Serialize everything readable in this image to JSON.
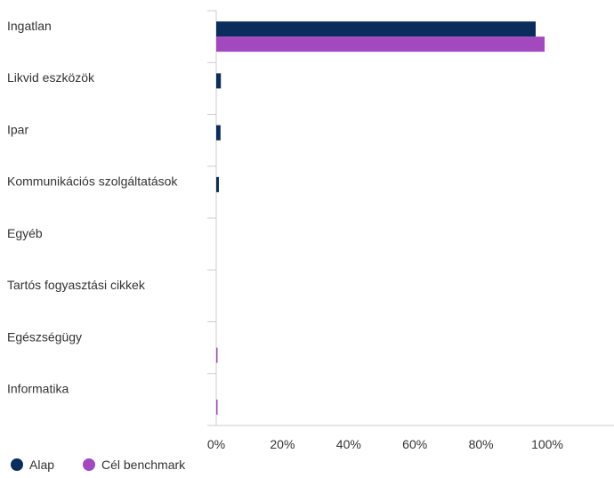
{
  "chart_data": {
    "type": "bar",
    "orientation": "horizontal",
    "categories": [
      "Ingatlan",
      "Likvid eszközök",
      "Ipar",
      "Kommunikációs szolgáltatások",
      "Egyéb",
      "Tartós fogyasztási cikkek",
      "Egészségügy",
      "Informatika"
    ],
    "series": [
      {
        "name": "Alap",
        "color": "#0b2d5b",
        "values": [
          96.5,
          1.4,
          1.3,
          0.8,
          0,
          0,
          0,
          0
        ]
      },
      {
        "name": "Cél benchmark",
        "color": "#a349bf",
        "values": [
          99.2,
          0,
          0,
          0,
          0,
          0,
          0.3,
          0.3
        ]
      }
    ],
    "xlim": [
      0,
      120
    ],
    "xticks": [
      0,
      20,
      40,
      60,
      80,
      100
    ],
    "xtick_labels": [
      "0%",
      "20%",
      "40%",
      "60%",
      "80%",
      "100%"
    ],
    "grid": false,
    "legend": "bottom-left"
  }
}
